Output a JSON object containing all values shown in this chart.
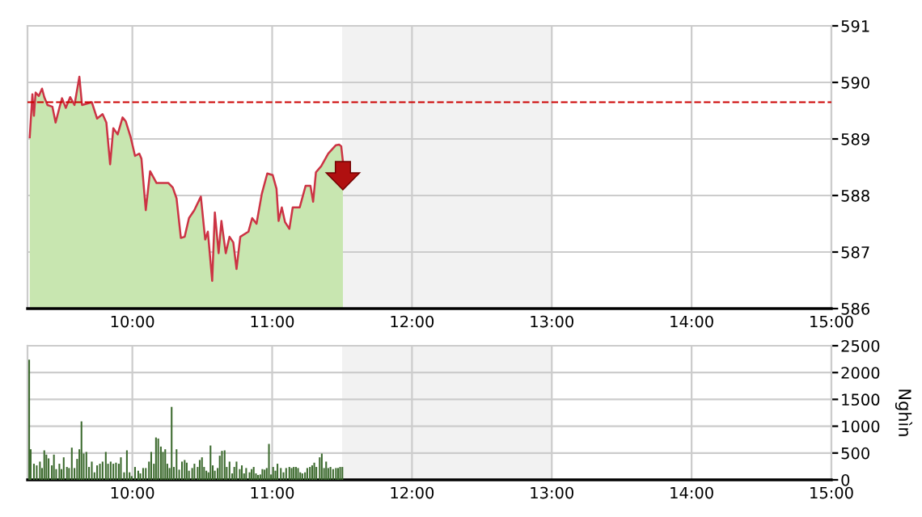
{
  "chart_data": [
    {
      "type": "area",
      "xlim": [
        9.25,
        15
      ],
      "ylim": [
        586,
        591
      ],
      "yticks": [
        586,
        587,
        588,
        589,
        590,
        591
      ],
      "xticks": [
        {
          "value": 10,
          "label": "10:00"
        },
        {
          "value": 11,
          "label": "11:00"
        },
        {
          "value": 12,
          "label": "12:00"
        },
        {
          "value": 13,
          "label": "13:00"
        },
        {
          "value": 14,
          "label": "14:00"
        },
        {
          "value": 15,
          "label": "15:00"
        }
      ],
      "grid": true,
      "ref_lines": [
        {
          "axis": "y",
          "value": 589.65,
          "color": "#cc0000",
          "line_style": "dashed"
        }
      ],
      "bands": [
        {
          "axis": "x",
          "from": 11.5,
          "to": 13,
          "color": "#f2f2f2"
        }
      ],
      "series": [
        {
          "type": "area",
          "color": "#c8e6b0",
          "x": [
            9.266,
            9.285,
            9.296,
            9.308,
            9.331,
            9.354,
            9.37,
            9.393,
            9.428,
            9.451,
            9.478,
            9.497,
            9.524,
            9.555,
            9.586,
            9.621,
            9.64,
            9.71,
            9.748,
            9.787,
            9.814,
            9.841,
            9.864,
            9.895,
            9.93,
            9.953,
            9.988,
            10.019,
            10.05,
            10.065,
            10.096,
            10.127,
            10.173,
            10.223,
            10.258,
            10.289,
            10.316,
            10.347,
            10.374,
            10.405,
            10.443,
            10.49,
            10.521,
            10.54,
            10.571,
            10.59,
            10.617,
            10.637,
            10.668,
            10.695,
            10.722,
            10.745,
            10.772,
            10.83,
            10.857,
            10.888,
            10.926,
            10.965,
            11.004,
            11.031,
            11.046,
            11.069,
            11.092,
            11.123,
            11.147,
            11.197,
            11.239,
            11.274,
            11.293,
            11.313,
            11.351,
            11.401,
            11.456,
            11.479,
            11.494,
            11.506
          ],
          "values": [
            589.03,
            589.79,
            589.41,
            589.82,
            589.76,
            589.89,
            589.74,
            589.6,
            589.57,
            589.29,
            589.55,
            589.72,
            589.55,
            589.74,
            589.6,
            590.1,
            589.6,
            589.65,
            589.36,
            589.44,
            589.29,
            588.55,
            589.19,
            589.08,
            589.38,
            589.31,
            589.03,
            588.7,
            588.74,
            588.65,
            587.74,
            588.43,
            588.22,
            588.22,
            588.22,
            588.14,
            587.95,
            587.25,
            587.27,
            587.6,
            587.74,
            587.98,
            587.22,
            587.36,
            586.49,
            587.7,
            586.98,
            587.55,
            586.98,
            587.27,
            587.17,
            586.7,
            587.27,
            587.36,
            587.6,
            587.5,
            588.03,
            588.39,
            588.36,
            588.12,
            587.55,
            587.79,
            587.53,
            587.41,
            587.79,
            587.79,
            588.17,
            588.17,
            587.89,
            588.41,
            588.52,
            588.74,
            588.89,
            588.9,
            588.87,
            588.6
          ]
        },
        {
          "type": "line",
          "color": "#cc3344",
          "x": [
            9.266,
            9.285,
            9.296,
            9.308,
            9.331,
            9.354,
            9.37,
            9.393,
            9.428,
            9.451,
            9.478,
            9.497,
            9.524,
            9.555,
            9.586,
            9.621,
            9.64,
            9.71,
            9.748,
            9.787,
            9.814,
            9.841,
            9.864,
            9.895,
            9.93,
            9.953,
            9.988,
            10.019,
            10.05,
            10.065,
            10.096,
            10.127,
            10.173,
            10.223,
            10.258,
            10.289,
            10.316,
            10.347,
            10.374,
            10.405,
            10.443,
            10.49,
            10.521,
            10.54,
            10.571,
            10.59,
            10.617,
            10.637,
            10.668,
            10.695,
            10.722,
            10.745,
            10.772,
            10.83,
            10.857,
            10.888,
            10.926,
            10.965,
            11.004,
            11.031,
            11.046,
            11.069,
            11.092,
            11.123,
            11.147,
            11.197,
            11.239,
            11.274,
            11.293,
            11.313,
            11.351,
            11.401,
            11.456,
            11.479,
            11.494,
            11.506
          ],
          "values": [
            589.03,
            589.79,
            589.41,
            589.82,
            589.76,
            589.89,
            589.74,
            589.6,
            589.57,
            589.29,
            589.55,
            589.72,
            589.55,
            589.74,
            589.6,
            590.1,
            589.6,
            589.65,
            589.36,
            589.44,
            589.29,
            588.55,
            589.19,
            589.08,
            589.38,
            589.31,
            589.03,
            588.7,
            588.74,
            588.65,
            587.74,
            588.43,
            588.22,
            588.22,
            588.22,
            588.14,
            587.95,
            587.25,
            587.27,
            587.6,
            587.74,
            587.98,
            587.22,
            587.36,
            586.49,
            587.7,
            586.98,
            587.55,
            586.98,
            587.27,
            587.17,
            586.7,
            587.27,
            587.36,
            587.6,
            587.5,
            588.03,
            588.39,
            588.36,
            588.12,
            587.55,
            587.79,
            587.53,
            587.41,
            587.79,
            587.79,
            588.17,
            588.17,
            587.89,
            588.41,
            588.52,
            588.74,
            588.89,
            588.9,
            588.87,
            588.6
          ]
        }
      ]
    },
    {
      "type": "bar",
      "xlim": [
        9.25,
        15
      ],
      "ylim": [
        0,
        2500
      ],
      "yticks": [
        0,
        500,
        1000,
        1500,
        2000,
        2500
      ],
      "xticks": [
        {
          "value": 10,
          "label": "10:00"
        },
        {
          "value": 11,
          "label": "11:00"
        },
        {
          "value": 12,
          "label": "12:00"
        },
        {
          "value": 13,
          "label": "13:00"
        },
        {
          "value": 14,
          "label": "14:00"
        },
        {
          "value": 15,
          "label": "15:00"
        }
      ],
      "ylabel": "Nghìn",
      "grid": true,
      "bands": [
        {
          "axis": "x",
          "from": 11.5,
          "to": 13,
          "color": "#f2f2f2"
        }
      ],
      "series": [
        {
          "color": "#3d6b2f",
          "x": [
            9.262,
            9.273,
            9.296,
            9.316,
            9.339,
            9.354,
            9.37,
            9.385,
            9.401,
            9.424,
            9.439,
            9.455,
            9.478,
            9.493,
            9.509,
            9.532,
            9.547,
            9.567,
            9.586,
            9.605,
            9.621,
            9.636,
            9.652,
            9.671,
            9.69,
            9.71,
            9.729,
            9.748,
            9.768,
            9.787,
            9.81,
            9.826,
            9.845,
            9.864,
            9.883,
            9.903,
            9.918,
            9.941,
            9.961,
            9.98,
            9.995,
            10.019,
            10.042,
            10.057,
            10.077,
            10.096,
            10.119,
            10.135,
            10.154,
            10.169,
            10.185,
            10.204,
            10.219,
            10.235,
            10.25,
            10.266,
            10.281,
            10.297,
            10.316,
            10.335,
            10.355,
            10.374,
            10.389,
            10.405,
            10.428,
            10.444,
            10.467,
            10.482,
            10.498,
            10.513,
            10.529,
            10.544,
            10.559,
            10.575,
            10.59,
            10.61,
            10.625,
            10.641,
            10.66,
            10.675,
            10.695,
            10.714,
            10.729,
            10.745,
            10.768,
            10.783,
            10.799,
            10.814,
            10.838,
            10.853,
            10.868,
            10.884,
            10.899,
            10.915,
            10.93,
            10.946,
            10.961,
            10.977,
            10.992,
            11.007,
            11.023,
            11.038,
            11.062,
            11.081,
            11.1,
            11.123,
            11.139,
            11.154,
            11.17,
            11.185,
            11.201,
            11.216,
            11.235,
            11.251,
            11.27,
            11.286,
            11.301,
            11.316,
            11.34,
            11.355,
            11.371,
            11.386,
            11.401,
            11.417,
            11.436,
            11.456,
            11.471,
            11.486,
            11.502
          ],
          "values": [
            2240,
            570,
            300,
            270,
            340,
            220,
            550,
            470,
            400,
            270,
            470,
            200,
            300,
            200,
            420,
            240,
            220,
            600,
            220,
            390,
            570,
            1090,
            490,
            520,
            240,
            340,
            140,
            270,
            300,
            340,
            520,
            300,
            340,
            300,
            320,
            300,
            420,
            140,
            550,
            140,
            70,
            240,
            170,
            120,
            220,
            220,
            340,
            520,
            300,
            790,
            770,
            620,
            520,
            570,
            300,
            220,
            1360,
            240,
            570,
            190,
            340,
            370,
            320,
            170,
            220,
            300,
            240,
            370,
            420,
            240,
            170,
            140,
            640,
            270,
            170,
            220,
            450,
            540,
            550,
            240,
            340,
            120,
            240,
            340,
            200,
            270,
            120,
            220,
            140,
            200,
            240,
            120,
            90,
            100,
            200,
            190,
            220,
            670,
            100,
            240,
            170,
            300,
            220,
            140,
            220,
            240,
            220,
            240,
            240,
            220,
            140,
            120,
            140,
            220,
            240,
            270,
            320,
            240,
            420,
            490,
            220,
            340,
            220,
            240,
            200,
            220,
            220,
            240,
            240
          ]
        }
      ]
    }
  ]
}
